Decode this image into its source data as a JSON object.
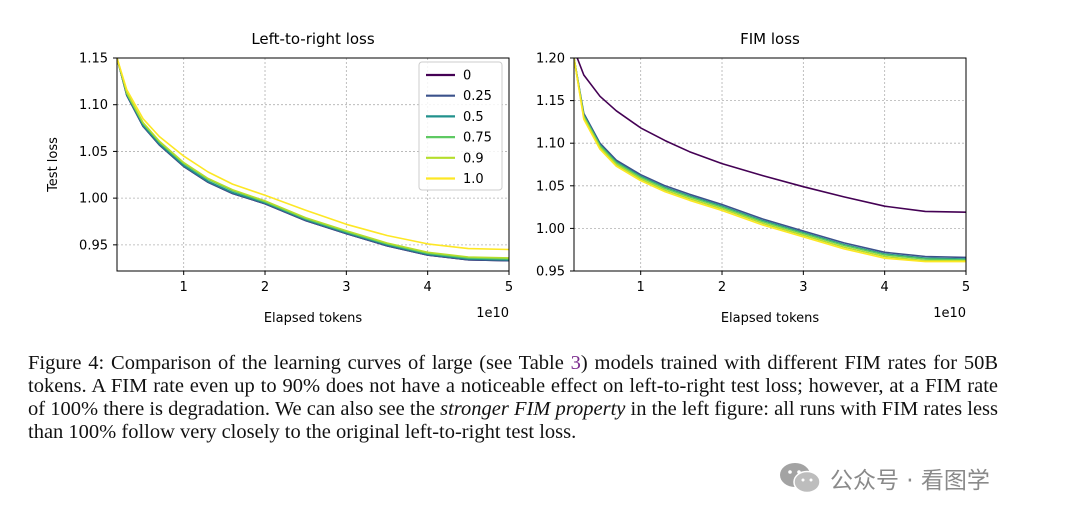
{
  "chart_data": [
    {
      "type": "line",
      "title": "Left-to-right loss",
      "xlabel": "Elapsed tokens",
      "ylabel": "Test loss",
      "x_multiplier": "1e10",
      "xlim": [
        0.18,
        5
      ],
      "ylim": [
        0.922,
        1.15
      ],
      "xticks": [
        1,
        2,
        3,
        4,
        5
      ],
      "yticks": [
        "0.95",
        "1.00",
        "1.05",
        "1.10",
        "1.15"
      ],
      "grid": true,
      "legend_position": "top-right",
      "series": [
        {
          "name": "0",
          "color": "#440154",
          "x": [
            0.18,
            0.3,
            0.5,
            0.7,
            1.0,
            1.3,
            1.6,
            2.0,
            2.5,
            3.0,
            3.5,
            4.0,
            4.5,
            5.0
          ],
          "y": [
            1.15,
            1.11,
            1.077,
            1.057,
            1.034,
            1.017,
            1.005,
            0.994,
            0.976,
            0.962,
            0.949,
            0.939,
            0.934,
            0.933
          ]
        },
        {
          "name": "0.25",
          "color": "#3b528b",
          "x": [
            0.18,
            0.3,
            0.5,
            0.7,
            1.0,
            1.3,
            1.6,
            2.0,
            2.5,
            3.0,
            3.5,
            4.0,
            4.5,
            5.0
          ],
          "y": [
            1.15,
            1.11,
            1.077,
            1.057,
            1.034,
            1.017,
            1.005,
            0.994,
            0.976,
            0.962,
            0.949,
            0.939,
            0.934,
            0.933
          ]
        },
        {
          "name": "0.5",
          "color": "#21918c",
          "x": [
            0.18,
            0.3,
            0.5,
            0.7,
            1.0,
            1.3,
            1.6,
            2.0,
            2.5,
            3.0,
            3.5,
            4.0,
            4.5,
            5.0
          ],
          "y": [
            1.15,
            1.111,
            1.078,
            1.058,
            1.035,
            1.018,
            1.006,
            0.995,
            0.977,
            0.963,
            0.95,
            0.94,
            0.935,
            0.934
          ]
        },
        {
          "name": "0.75",
          "color": "#5ec962",
          "x": [
            0.18,
            0.3,
            0.5,
            0.7,
            1.0,
            1.3,
            1.6,
            2.0,
            2.5,
            3.0,
            3.5,
            4.0,
            4.5,
            5.0
          ],
          "y": [
            1.15,
            1.112,
            1.08,
            1.06,
            1.037,
            1.02,
            1.008,
            0.996,
            0.978,
            0.964,
            0.951,
            0.941,
            0.936,
            0.935
          ]
        },
        {
          "name": "0.9",
          "color": "#b5de2b",
          "x": [
            0.18,
            0.3,
            0.5,
            0.7,
            1.0,
            1.3,
            1.6,
            2.0,
            2.5,
            3.0,
            3.5,
            4.0,
            4.5,
            5.0
          ],
          "y": [
            1.15,
            1.113,
            1.081,
            1.061,
            1.038,
            1.021,
            1.009,
            0.997,
            0.979,
            0.965,
            0.952,
            0.942,
            0.937,
            0.936
          ]
        },
        {
          "name": "1.0",
          "color": "#fde725",
          "x": [
            0.18,
            0.3,
            0.5,
            0.7,
            1.0,
            1.3,
            1.6,
            2.0,
            2.5,
            3.0,
            3.5,
            4.0,
            4.5,
            5.0
          ],
          "y": [
            1.15,
            1.116,
            1.085,
            1.066,
            1.045,
            1.028,
            1.015,
            1.003,
            0.987,
            0.972,
            0.96,
            0.951,
            0.946,
            0.945
          ]
        }
      ]
    },
    {
      "type": "line",
      "title": "FIM loss",
      "xlabel": "Elapsed tokens",
      "ylabel": "",
      "x_multiplier": "1e10",
      "xlim": [
        0.18,
        5
      ],
      "ylim": [
        0.95,
        1.2
      ],
      "xticks": [
        1,
        2,
        3,
        4,
        5
      ],
      "yticks": [
        "0.95",
        "1.00",
        "1.05",
        "1.10",
        "1.15",
        "1.20"
      ],
      "grid": true,
      "series": [
        {
          "name": "0",
          "color": "#440154",
          "x": [
            0.2,
            0.3,
            0.5,
            0.7,
            1.0,
            1.3,
            1.6,
            2.0,
            2.5,
            3.0,
            3.5,
            4.0,
            4.5,
            5.0
          ],
          "y": [
            1.205,
            1.18,
            1.155,
            1.138,
            1.118,
            1.103,
            1.09,
            1.076,
            1.062,
            1.049,
            1.037,
            1.026,
            1.02,
            1.019
          ]
        },
        {
          "name": "0.25",
          "color": "#3b528b",
          "x": [
            0.18,
            0.3,
            0.5,
            0.7,
            1.0,
            1.3,
            1.6,
            2.0,
            2.5,
            3.0,
            3.5,
            4.0,
            4.5,
            5.0
          ],
          "y": [
            1.2,
            1.135,
            1.1,
            1.08,
            1.063,
            1.05,
            1.04,
            1.028,
            1.011,
            0.997,
            0.983,
            0.972,
            0.967,
            0.966
          ]
        },
        {
          "name": "0.5",
          "color": "#21918c",
          "x": [
            0.18,
            0.3,
            0.5,
            0.7,
            1.0,
            1.3,
            1.6,
            2.0,
            2.5,
            3.0,
            3.5,
            4.0,
            4.5,
            5.0
          ],
          "y": [
            1.2,
            1.133,
            1.098,
            1.078,
            1.061,
            1.048,
            1.038,
            1.026,
            1.009,
            0.995,
            0.981,
            0.97,
            0.965,
            0.964
          ]
        },
        {
          "name": "0.75",
          "color": "#5ec962",
          "x": [
            0.18,
            0.3,
            0.5,
            0.7,
            1.0,
            1.3,
            1.6,
            2.0,
            2.5,
            3.0,
            3.5,
            4.0,
            4.5,
            5.0
          ],
          "y": [
            1.2,
            1.132,
            1.097,
            1.077,
            1.06,
            1.047,
            1.037,
            1.025,
            1.008,
            0.994,
            0.98,
            0.969,
            0.964,
            0.963
          ]
        },
        {
          "name": "0.9",
          "color": "#b5de2b",
          "x": [
            0.18,
            0.3,
            0.5,
            0.7,
            1.0,
            1.3,
            1.6,
            2.0,
            2.5,
            3.0,
            3.5,
            4.0,
            4.5,
            5.0
          ],
          "y": [
            1.2,
            1.13,
            1.095,
            1.075,
            1.058,
            1.045,
            1.035,
            1.023,
            1.006,
            0.992,
            0.978,
            0.967,
            0.962,
            0.962
          ]
        },
        {
          "name": "1.0",
          "color": "#fde725",
          "x": [
            0.18,
            0.3,
            0.5,
            0.7,
            1.0,
            1.3,
            1.6,
            2.0,
            2.5,
            3.0,
            3.5,
            4.0,
            4.5,
            5.0
          ],
          "y": [
            1.2,
            1.128,
            1.093,
            1.073,
            1.056,
            1.043,
            1.033,
            1.021,
            1.004,
            0.99,
            0.976,
            0.965,
            0.961,
            0.961
          ]
        }
      ]
    }
  ],
  "caption": {
    "prefix": "Figure 4: Comparison of the learning curves of large (see Table ",
    "ref": "3",
    "mid": ") models trained with different FIM rates for 50B tokens. A FIM rate even up to 90% does not have a noticeable effect on left-to-right test loss; however, at a FIM rate of 100% there is degradation. We can also see the ",
    "emphasis": "stronger FIM property",
    "suffix": " in the left figure: all runs with FIM rates less than 100% follow very closely to the original left-to-right test loss."
  },
  "watermark": {
    "text": "公众号 · 看图学"
  }
}
